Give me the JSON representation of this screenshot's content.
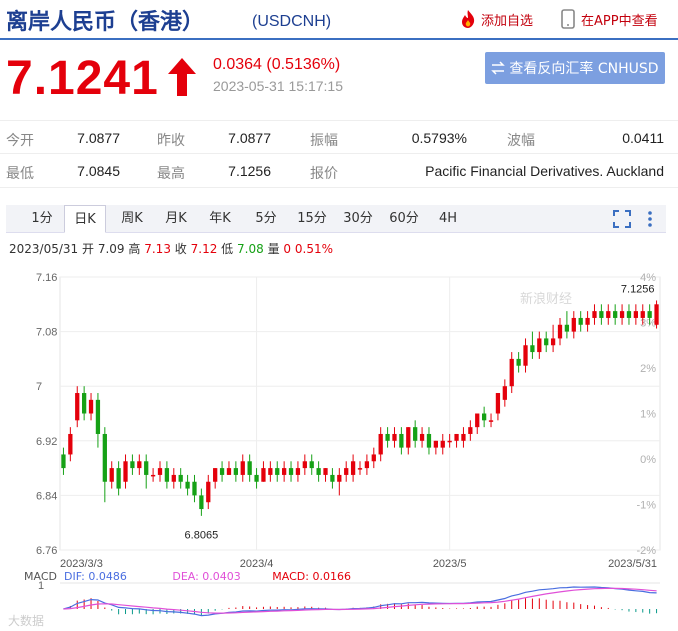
{
  "header": {
    "title": "离岸人民币（香港）",
    "symbol": "(USDCNH)",
    "add_watchlist": "添加自选",
    "app_view": "在APP中查看"
  },
  "quote": {
    "price": "7.1241",
    "change": "0.0364 (0.5136%)",
    "time": "2023-05-31 15:17:15",
    "reverse_button": "查看反向汇率 CNHUSD",
    "direction": "up",
    "up_color": "#e4000b"
  },
  "stats": {
    "open_label": "今开",
    "open": "7.0877",
    "prev_close_label": "昨收",
    "prev_close": "7.0877",
    "amplitude_label": "振幅",
    "amplitude": "0.5793%",
    "volatility_label": "波幅",
    "volatility": "0.0411",
    "low_label": "最低",
    "low": "7.0845",
    "high_label": "最高",
    "high": "7.1256",
    "quote_label": "报价",
    "quote_source": "Pacific Financial Derivatives. Auckland"
  },
  "tabs": [
    "1分",
    "日K",
    "周K",
    "月K",
    "年K",
    "5分",
    "15分",
    "30分",
    "60分",
    "4H"
  ],
  "active_tab": "日K",
  "ohlc_line": {
    "date": "2023/05/31",
    "open_label": "开",
    "open": "7.09",
    "high_label": "高",
    "high": "7.13",
    "close_label": "收",
    "close": "7.12",
    "low_label": "低",
    "low": "7.08",
    "volume_label": "量",
    "volume": "0",
    "pct": "0.51%"
  },
  "macd": {
    "label": "MACD",
    "dif": "DIF: 0.0486",
    "dea": "DEA: 0.0403",
    "macd": "MACD: 0.0166",
    "axis_label": "1",
    "dif_color": "#4a6ee0",
    "dea_color": "#e050d8"
  },
  "watermark": "新浪财经",
  "corner_watermark": "大数据",
  "chart_data": {
    "type": "candlestick",
    "ylim": [
      6.76,
      7.16
    ],
    "y_ticks": [
      "7.16",
      "7.08",
      "7",
      "6.92",
      "6.84",
      "6.76"
    ],
    "pct_ticks": [
      "4%",
      "3%",
      "2%",
      "1%",
      "0%",
      "-1%",
      "-2%"
    ],
    "x_labels": [
      "2023/3/3",
      "2023/4",
      "2023/5",
      "2023/5/31"
    ],
    "x_label_index": [
      0,
      28,
      56,
      86
    ],
    "annotations": [
      {
        "text": "7.1256",
        "index": 86,
        "value": 7.1256
      },
      {
        "text": "6.8065",
        "index": 20,
        "value": 6.8065
      }
    ],
    "up_color": "#e4000b",
    "down_color": "#16a116",
    "candles": [
      [
        6.9,
        6.88,
        6.91,
        6.87
      ],
      [
        6.9,
        6.93,
        6.94,
        6.89
      ],
      [
        6.95,
        6.99,
        7.0,
        6.94
      ],
      [
        6.99,
        6.96,
        7.0,
        6.95
      ],
      [
        6.96,
        6.98,
        6.99,
        6.95
      ],
      [
        6.98,
        6.93,
        6.99,
        6.91
      ],
      [
        6.93,
        6.86,
        6.94,
        6.83
      ],
      [
        6.86,
        6.88,
        6.89,
        6.85
      ],
      [
        6.88,
        6.85,
        6.89,
        6.84
      ],
      [
        6.86,
        6.89,
        6.9,
        6.85
      ],
      [
        6.89,
        6.88,
        6.9,
        6.87
      ],
      [
        6.88,
        6.89,
        6.9,
        6.87
      ],
      [
        6.89,
        6.87,
        6.9,
        6.85
      ],
      [
        6.87,
        6.87,
        6.88,
        6.86
      ],
      [
        6.87,
        6.88,
        6.89,
        6.86
      ],
      [
        6.88,
        6.86,
        6.89,
        6.85
      ],
      [
        6.86,
        6.87,
        6.88,
        6.85
      ],
      [
        6.87,
        6.86,
        6.88,
        6.85
      ],
      [
        6.86,
        6.85,
        6.87,
        6.84
      ],
      [
        6.86,
        6.84,
        6.87,
        6.83
      ],
      [
        6.84,
        6.82,
        6.85,
        6.81
      ],
      [
        6.83,
        6.86,
        6.87,
        6.82
      ],
      [
        6.86,
        6.88,
        6.88,
        6.85
      ],
      [
        6.88,
        6.87,
        6.89,
        6.86
      ],
      [
        6.87,
        6.88,
        6.89,
        6.87
      ],
      [
        6.88,
        6.87,
        6.89,
        6.86
      ],
      [
        6.87,
        6.89,
        6.9,
        6.86
      ],
      [
        6.89,
        6.87,
        6.9,
        6.86
      ],
      [
        6.87,
        6.86,
        6.88,
        6.85
      ],
      [
        6.86,
        6.88,
        6.89,
        6.86
      ],
      [
        6.87,
        6.88,
        6.89,
        6.86
      ],
      [
        6.88,
        6.87,
        6.89,
        6.86
      ],
      [
        6.87,
        6.88,
        6.89,
        6.86
      ],
      [
        6.88,
        6.87,
        6.89,
        6.86
      ],
      [
        6.87,
        6.88,
        6.89,
        6.86
      ],
      [
        6.88,
        6.89,
        6.9,
        6.87
      ],
      [
        6.89,
        6.88,
        6.9,
        6.87
      ],
      [
        6.88,
        6.87,
        6.89,
        6.86
      ],
      [
        6.87,
        6.88,
        6.88,
        6.86
      ],
      [
        6.87,
        6.86,
        6.88,
        6.85
      ],
      [
        6.86,
        6.87,
        6.88,
        6.84
      ],
      [
        6.87,
        6.88,
        6.89,
        6.86
      ],
      [
        6.87,
        6.89,
        6.9,
        6.86
      ],
      [
        6.88,
        6.88,
        6.89,
        6.87
      ],
      [
        6.88,
        6.89,
        6.9,
        6.87
      ],
      [
        6.89,
        6.9,
        6.91,
        6.88
      ],
      [
        6.9,
        6.93,
        6.94,
        6.89
      ],
      [
        6.93,
        6.92,
        6.94,
        6.91
      ],
      [
        6.92,
        6.93,
        6.94,
        6.91
      ],
      [
        6.93,
        6.91,
        6.94,
        6.9
      ],
      [
        6.91,
        6.94,
        6.94,
        6.9
      ],
      [
        6.94,
        6.92,
        6.95,
        6.91
      ],
      [
        6.92,
        6.93,
        6.94,
        6.91
      ],
      [
        6.93,
        6.91,
        6.94,
        6.9
      ],
      [
        6.91,
        6.92,
        6.92,
        6.9
      ],
      [
        6.91,
        6.92,
        6.93,
        6.9
      ],
      [
        6.92,
        6.92,
        6.93,
        6.91
      ],
      [
        6.92,
        6.93,
        6.93,
        6.91
      ],
      [
        6.92,
        6.93,
        6.94,
        6.91
      ],
      [
        6.93,
        6.94,
        6.95,
        6.92
      ],
      [
        6.94,
        6.96,
        6.96,
        6.93
      ],
      [
        6.96,
        6.95,
        6.97,
        6.94
      ],
      [
        6.95,
        6.95,
        6.96,
        6.94
      ],
      [
        6.96,
        6.99,
        6.99,
        6.95
      ],
      [
        6.98,
        7.0,
        7.01,
        6.97
      ],
      [
        7.0,
        7.04,
        7.05,
        6.99
      ],
      [
        7.04,
        7.03,
        7.05,
        7.02
      ],
      [
        7.03,
        7.06,
        7.07,
        7.02
      ],
      [
        7.06,
        7.05,
        7.08,
        7.04
      ],
      [
        7.05,
        7.07,
        7.08,
        7.04
      ],
      [
        7.07,
        7.06,
        7.08,
        7.05
      ],
      [
        7.06,
        7.07,
        7.09,
        7.05
      ],
      [
        7.07,
        7.09,
        7.1,
        7.06
      ],
      [
        7.09,
        7.08,
        7.11,
        7.07
      ],
      [
        7.08,
        7.1,
        7.11,
        7.07
      ],
      [
        7.1,
        7.09,
        7.11,
        7.08
      ],
      [
        7.09,
        7.1,
        7.11,
        7.08
      ],
      [
        7.1,
        7.11,
        7.12,
        7.09
      ],
      [
        7.11,
        7.1,
        7.12,
        7.09
      ],
      [
        7.1,
        7.11,
        7.12,
        7.09
      ],
      [
        7.11,
        7.1,
        7.12,
        7.09
      ],
      [
        7.1,
        7.11,
        7.12,
        7.09
      ],
      [
        7.11,
        7.1,
        7.12,
        7.09
      ],
      [
        7.1,
        7.11,
        7.12,
        7.09
      ],
      [
        7.1,
        7.11,
        7.12,
        7.09
      ],
      [
        7.11,
        7.1,
        7.12,
        7.09
      ],
      [
        7.09,
        7.12,
        7.1256,
        7.0845
      ]
    ]
  }
}
